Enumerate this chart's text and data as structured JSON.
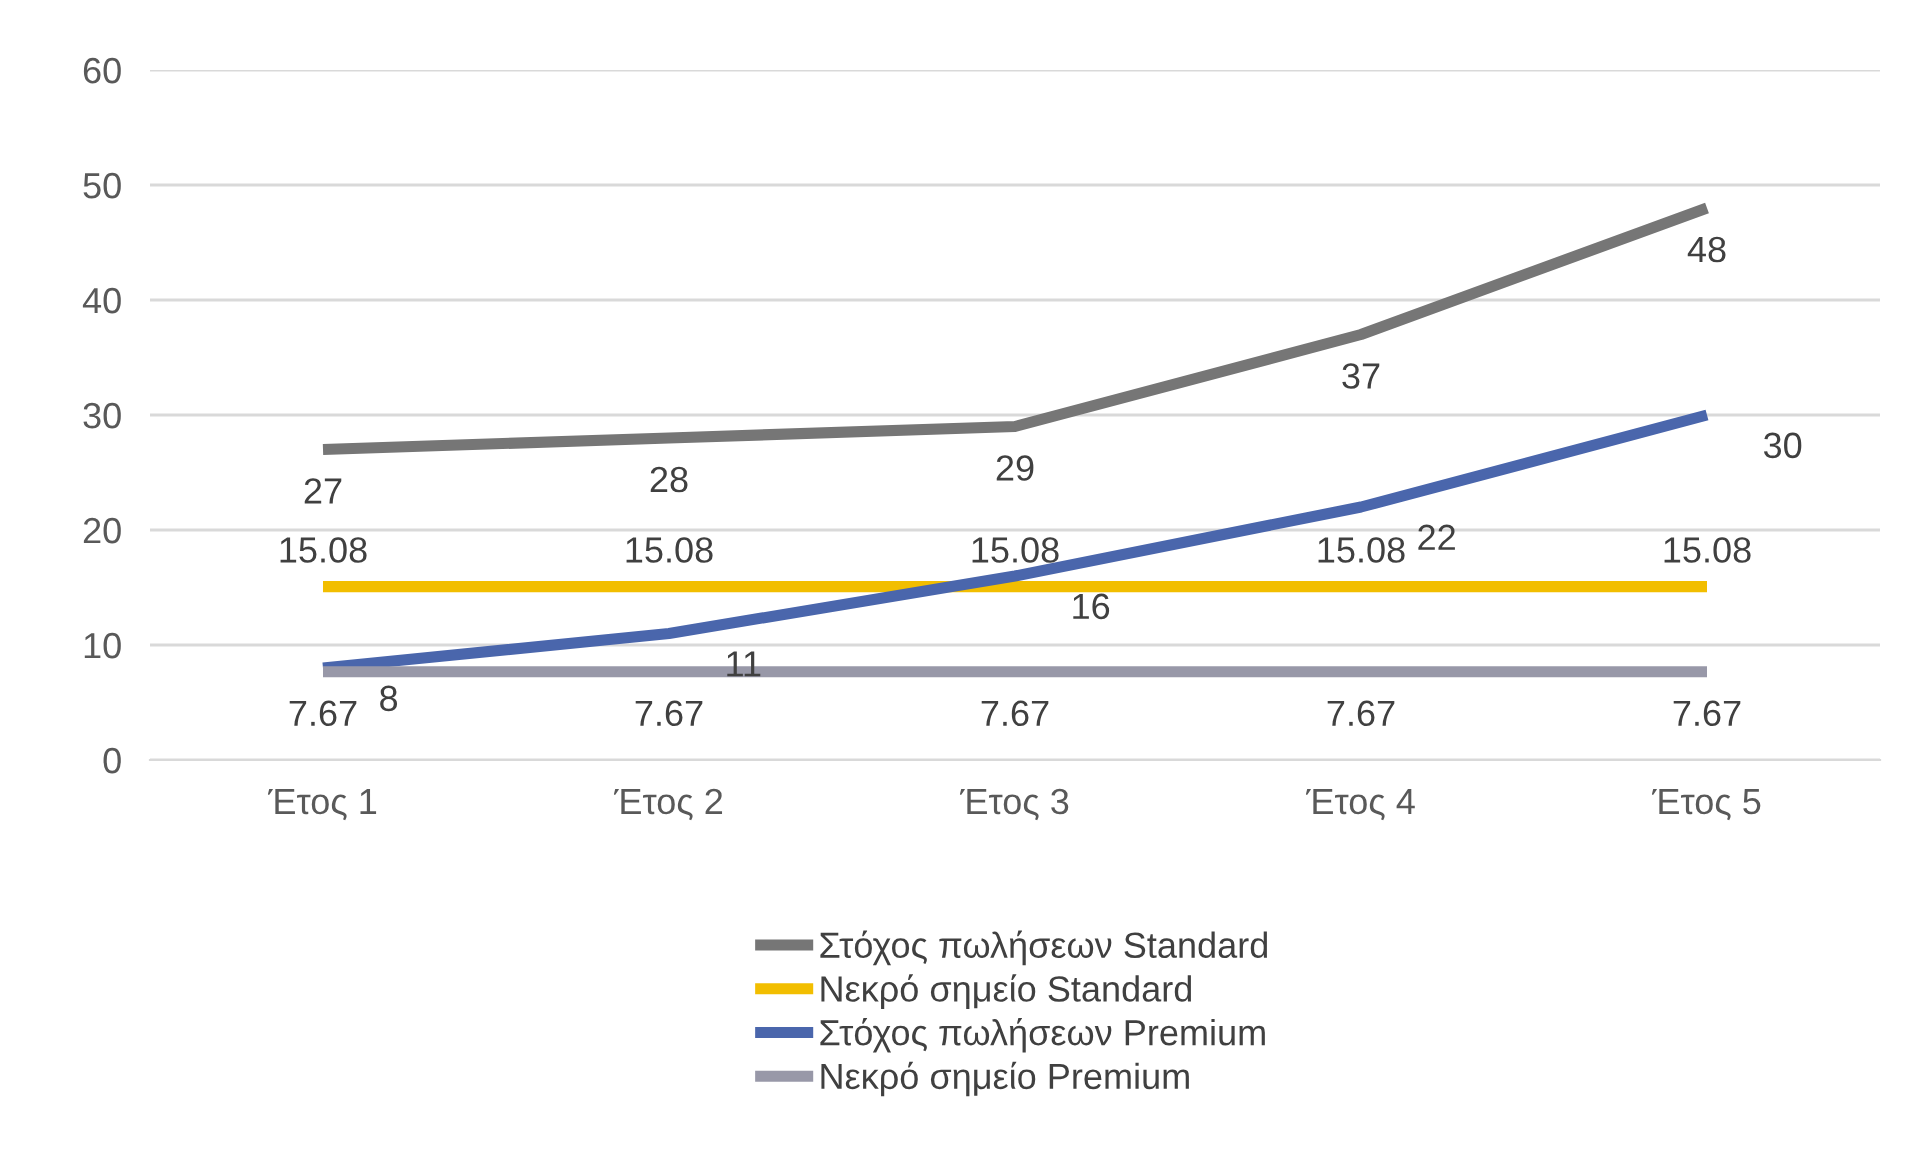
{
  "chart_data": {
    "type": "line",
    "categories": [
      "Έτος 1",
      "Έτος 2",
      "Έτος 3",
      "Έτος 4",
      "Έτος 5"
    ],
    "series": [
      {
        "name": "Στόχος πωλήσεων Standard",
        "color": "#767676",
        "values": [
          27,
          28,
          29,
          37,
          48
        ]
      },
      {
        "name": "Νεκρό σημείο Standard",
        "color": "#f2be00",
        "values": [
          15.08,
          15.08,
          15.08,
          15.08,
          15.08
        ]
      },
      {
        "name": "Στόχος πωλήσεων Premium",
        "color": "#4a66ac",
        "values": [
          8,
          11,
          16,
          22,
          30
        ]
      },
      {
        "name": "Νεκρό σημείο Premium",
        "color": "#9898a8",
        "values": [
          7.67,
          7.67,
          7.67,
          7.67,
          7.67
        ]
      }
    ],
    "ylim": [
      0,
      60
    ],
    "yticks": [
      0,
      10,
      20,
      30,
      40,
      50,
      60
    ],
    "grid": "y",
    "legend": "bottom",
    "data_labels": true,
    "marker": "none",
    "line_style": "solid"
  }
}
